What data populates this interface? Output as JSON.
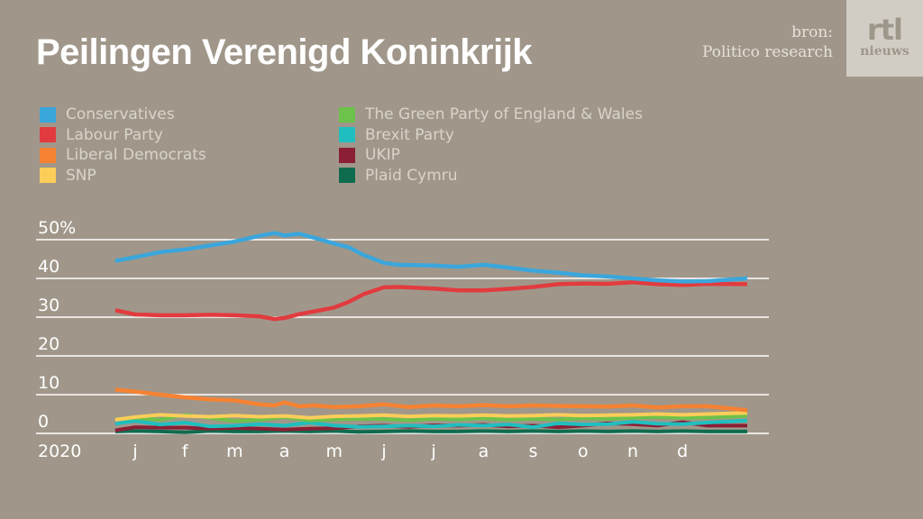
{
  "title": "Peilingen Verenigd Koninkrijk",
  "source": {
    "line1": "bron:",
    "line2": "Politico research"
  },
  "logo": {
    "top": "rtl",
    "bottom": "nieuws"
  },
  "chart_data": {
    "type": "line",
    "title": "Peilingen Verenigd Koninkrijk",
    "xlabel": "",
    "ylabel": "",
    "ylim": [
      0,
      50
    ],
    "yticks": [
      {
        "value": 50,
        "label": "50%"
      },
      {
        "value": 40,
        "label": "40"
      },
      {
        "value": 30,
        "label": "30"
      },
      {
        "value": 20,
        "label": "20"
      },
      {
        "value": 10,
        "label": "10"
      },
      {
        "value": 0,
        "label": "0"
      }
    ],
    "year_label": "2020",
    "xticks": [
      "j",
      "f",
      "m",
      "a",
      "m",
      "j",
      "j",
      "a",
      "s",
      "o",
      "n",
      "d"
    ],
    "x_range_months": [
      0,
      12.3
    ],
    "grid": true,
    "legend_placement": "top-left",
    "series": [
      {
        "name": "Conservatives",
        "color": "#3aa6dc",
        "x": [
          -0.4,
          0,
          0.5,
          1,
          1.5,
          2,
          2.5,
          2.8,
          3,
          3.3,
          3.6,
          4,
          4.3,
          4.6,
          5,
          5.3,
          6,
          6.5,
          7,
          7.5,
          8,
          8.5,
          9,
          9.5,
          10,
          10.5,
          11,
          11.5,
          12.3
        ],
        "y": [
          44.5,
          45.5,
          46.8,
          47.5,
          48.5,
          49.5,
          51,
          51.7,
          51.1,
          51.5,
          50.5,
          49,
          48,
          46,
          44,
          43.5,
          43.3,
          43,
          43.5,
          42.8,
          42,
          41.5,
          40.8,
          40.5,
          40,
          39.5,
          39.2,
          39.3,
          40
        ]
      },
      {
        "name": "Labour Party",
        "color": "#e23b3f",
        "x": [
          -0.4,
          0,
          0.5,
          1,
          1.5,
          2,
          2.5,
          2.8,
          3,
          3.3,
          3.6,
          4,
          4.3,
          4.6,
          5,
          5.3,
          6,
          6.5,
          7,
          7.5,
          8,
          8.5,
          9,
          9.5,
          10,
          10.5,
          11,
          11.5,
          12.3
        ],
        "y": [
          31.8,
          30.7,
          30.5,
          30.5,
          30.6,
          30.5,
          30.2,
          29.5,
          29.8,
          30.8,
          31.5,
          32.5,
          34,
          36,
          37.7,
          37.8,
          37.4,
          36.9,
          36.9,
          37.3,
          37.8,
          38.5,
          38.7,
          38.6,
          39,
          38.5,
          38.3,
          38.6,
          38.5
        ]
      },
      {
        "name": "Liberal Democrats",
        "color": "#f58233",
        "x": [
          -0.4,
          0,
          0.5,
          1,
          1.5,
          2,
          2.5,
          2.8,
          3,
          3.3,
          3.6,
          4,
          4.5,
          5,
          5.5,
          6,
          6.5,
          7,
          7.5,
          8,
          8.5,
          9,
          9.5,
          10,
          10.5,
          11,
          11.5,
          12.3
        ],
        "y": [
          11.3,
          10.8,
          10,
          9.3,
          8.8,
          8.5,
          7.5,
          7.2,
          8,
          7,
          7.2,
          6.8,
          7,
          7.5,
          6.8,
          7.2,
          7,
          7.3,
          7,
          7.2,
          7.1,
          7,
          6.9,
          7.2,
          6.7,
          7,
          7,
          6
        ]
      },
      {
        "name": "SNP",
        "color": "#fccd59",
        "x": [
          -0.4,
          0,
          0.5,
          1,
          1.5,
          2,
          2.5,
          3,
          3.5,
          4,
          4.5,
          5,
          5.5,
          6,
          6.5,
          7,
          7.5,
          8,
          8.5,
          9,
          9.5,
          10,
          10.5,
          11,
          11.5,
          12.3
        ],
        "y": [
          3.5,
          4.2,
          4.8,
          4.5,
          4.3,
          4.6,
          4.3,
          4.5,
          4,
          4.4,
          4.5,
          4.7,
          4.4,
          4.6,
          4.5,
          4.7,
          4.5,
          4.6,
          4.8,
          4.6,
          4.7,
          4.8,
          5,
          4.8,
          5,
          5.3
        ]
      },
      {
        "name": "The Green Party of England & Wales",
        "color": "#6cc24a",
        "x": [
          -0.4,
          0,
          0.5,
          1,
          1.5,
          2,
          2.5,
          3,
          3.5,
          4,
          4.5,
          5,
          5.5,
          6,
          6.5,
          7,
          7.5,
          8,
          8.5,
          9,
          9.5,
          10,
          10.5,
          11,
          11.5,
          12.3
        ],
        "y": [
          3.6,
          4.0,
          3.5,
          4.8,
          4.0,
          3.2,
          3.5,
          4.2,
          3.3,
          3.6,
          3.8,
          3.7,
          3.4,
          3.8,
          3.6,
          3.9,
          3.5,
          3.8,
          3.6,
          3.9,
          3.8,
          4.0,
          4.2,
          4.0,
          4.1,
          4.5
        ]
      },
      {
        "name": "Brexit Party",
        "color": "#1fbfbf",
        "x": [
          -0.4,
          0,
          0.5,
          1,
          1.5,
          2,
          2.5,
          3,
          3.5,
          4,
          4.5,
          5,
          5.5,
          6,
          6.5,
          7,
          7.5,
          8,
          8.5,
          9,
          9.5,
          10,
          10.5,
          11,
          11.5,
          12.3
        ],
        "y": [
          2.5,
          3.2,
          2.3,
          2.8,
          1.8,
          2.0,
          2.4,
          2.0,
          2.8,
          2.0,
          1.7,
          1.8,
          2.0,
          1.8,
          2.2,
          2.0,
          2.3,
          1.6,
          2.6,
          2.3,
          2.4,
          3.0,
          2.5,
          2.4,
          2.8,
          3.3
        ]
      },
      {
        "name": "UKIP",
        "color": "#8a1f36",
        "x": [
          -0.4,
          0,
          0.5,
          1,
          1.5,
          2,
          2.5,
          3,
          3.5,
          4,
          4.5,
          5,
          5.5,
          6,
          6.5,
          7,
          7.5,
          8,
          8.5,
          9,
          9.5,
          10,
          10.5,
          11,
          11.5,
          12.3
        ],
        "y": [
          0.8,
          1.6,
          1.5,
          1.5,
          1.2,
          1.4,
          1.2,
          1.0,
          1.2,
          1.3,
          1.8,
          2.0,
          1.7,
          2.1,
          2.0,
          2.2,
          1.8,
          2.0,
          1.6,
          2.0,
          2.6,
          2.4,
          2.0,
          2.9,
          2.0,
          2.0
        ]
      },
      {
        "name": "Plaid Cymru",
        "color": "#0f6b4e",
        "x": [
          -0.4,
          0,
          0.5,
          1,
          1.5,
          2,
          2.5,
          3,
          3.5,
          4,
          4.5,
          5,
          5.5,
          6,
          6.5,
          7,
          7.5,
          8,
          8.5,
          9,
          9.5,
          10,
          10.5,
          11,
          11.5,
          12.3
        ],
        "y": [
          0.5,
          0.6,
          0.5,
          0.3,
          0.6,
          0.5,
          0.5,
          0.6,
          0.5,
          0.6,
          0.4,
          0.5,
          0.6,
          0.5,
          0.5,
          0.6,
          0.5,
          0.6,
          0.5,
          0.6,
          0.5,
          0.6,
          0.5,
          0.6,
          0.5,
          0.5
        ]
      }
    ]
  }
}
